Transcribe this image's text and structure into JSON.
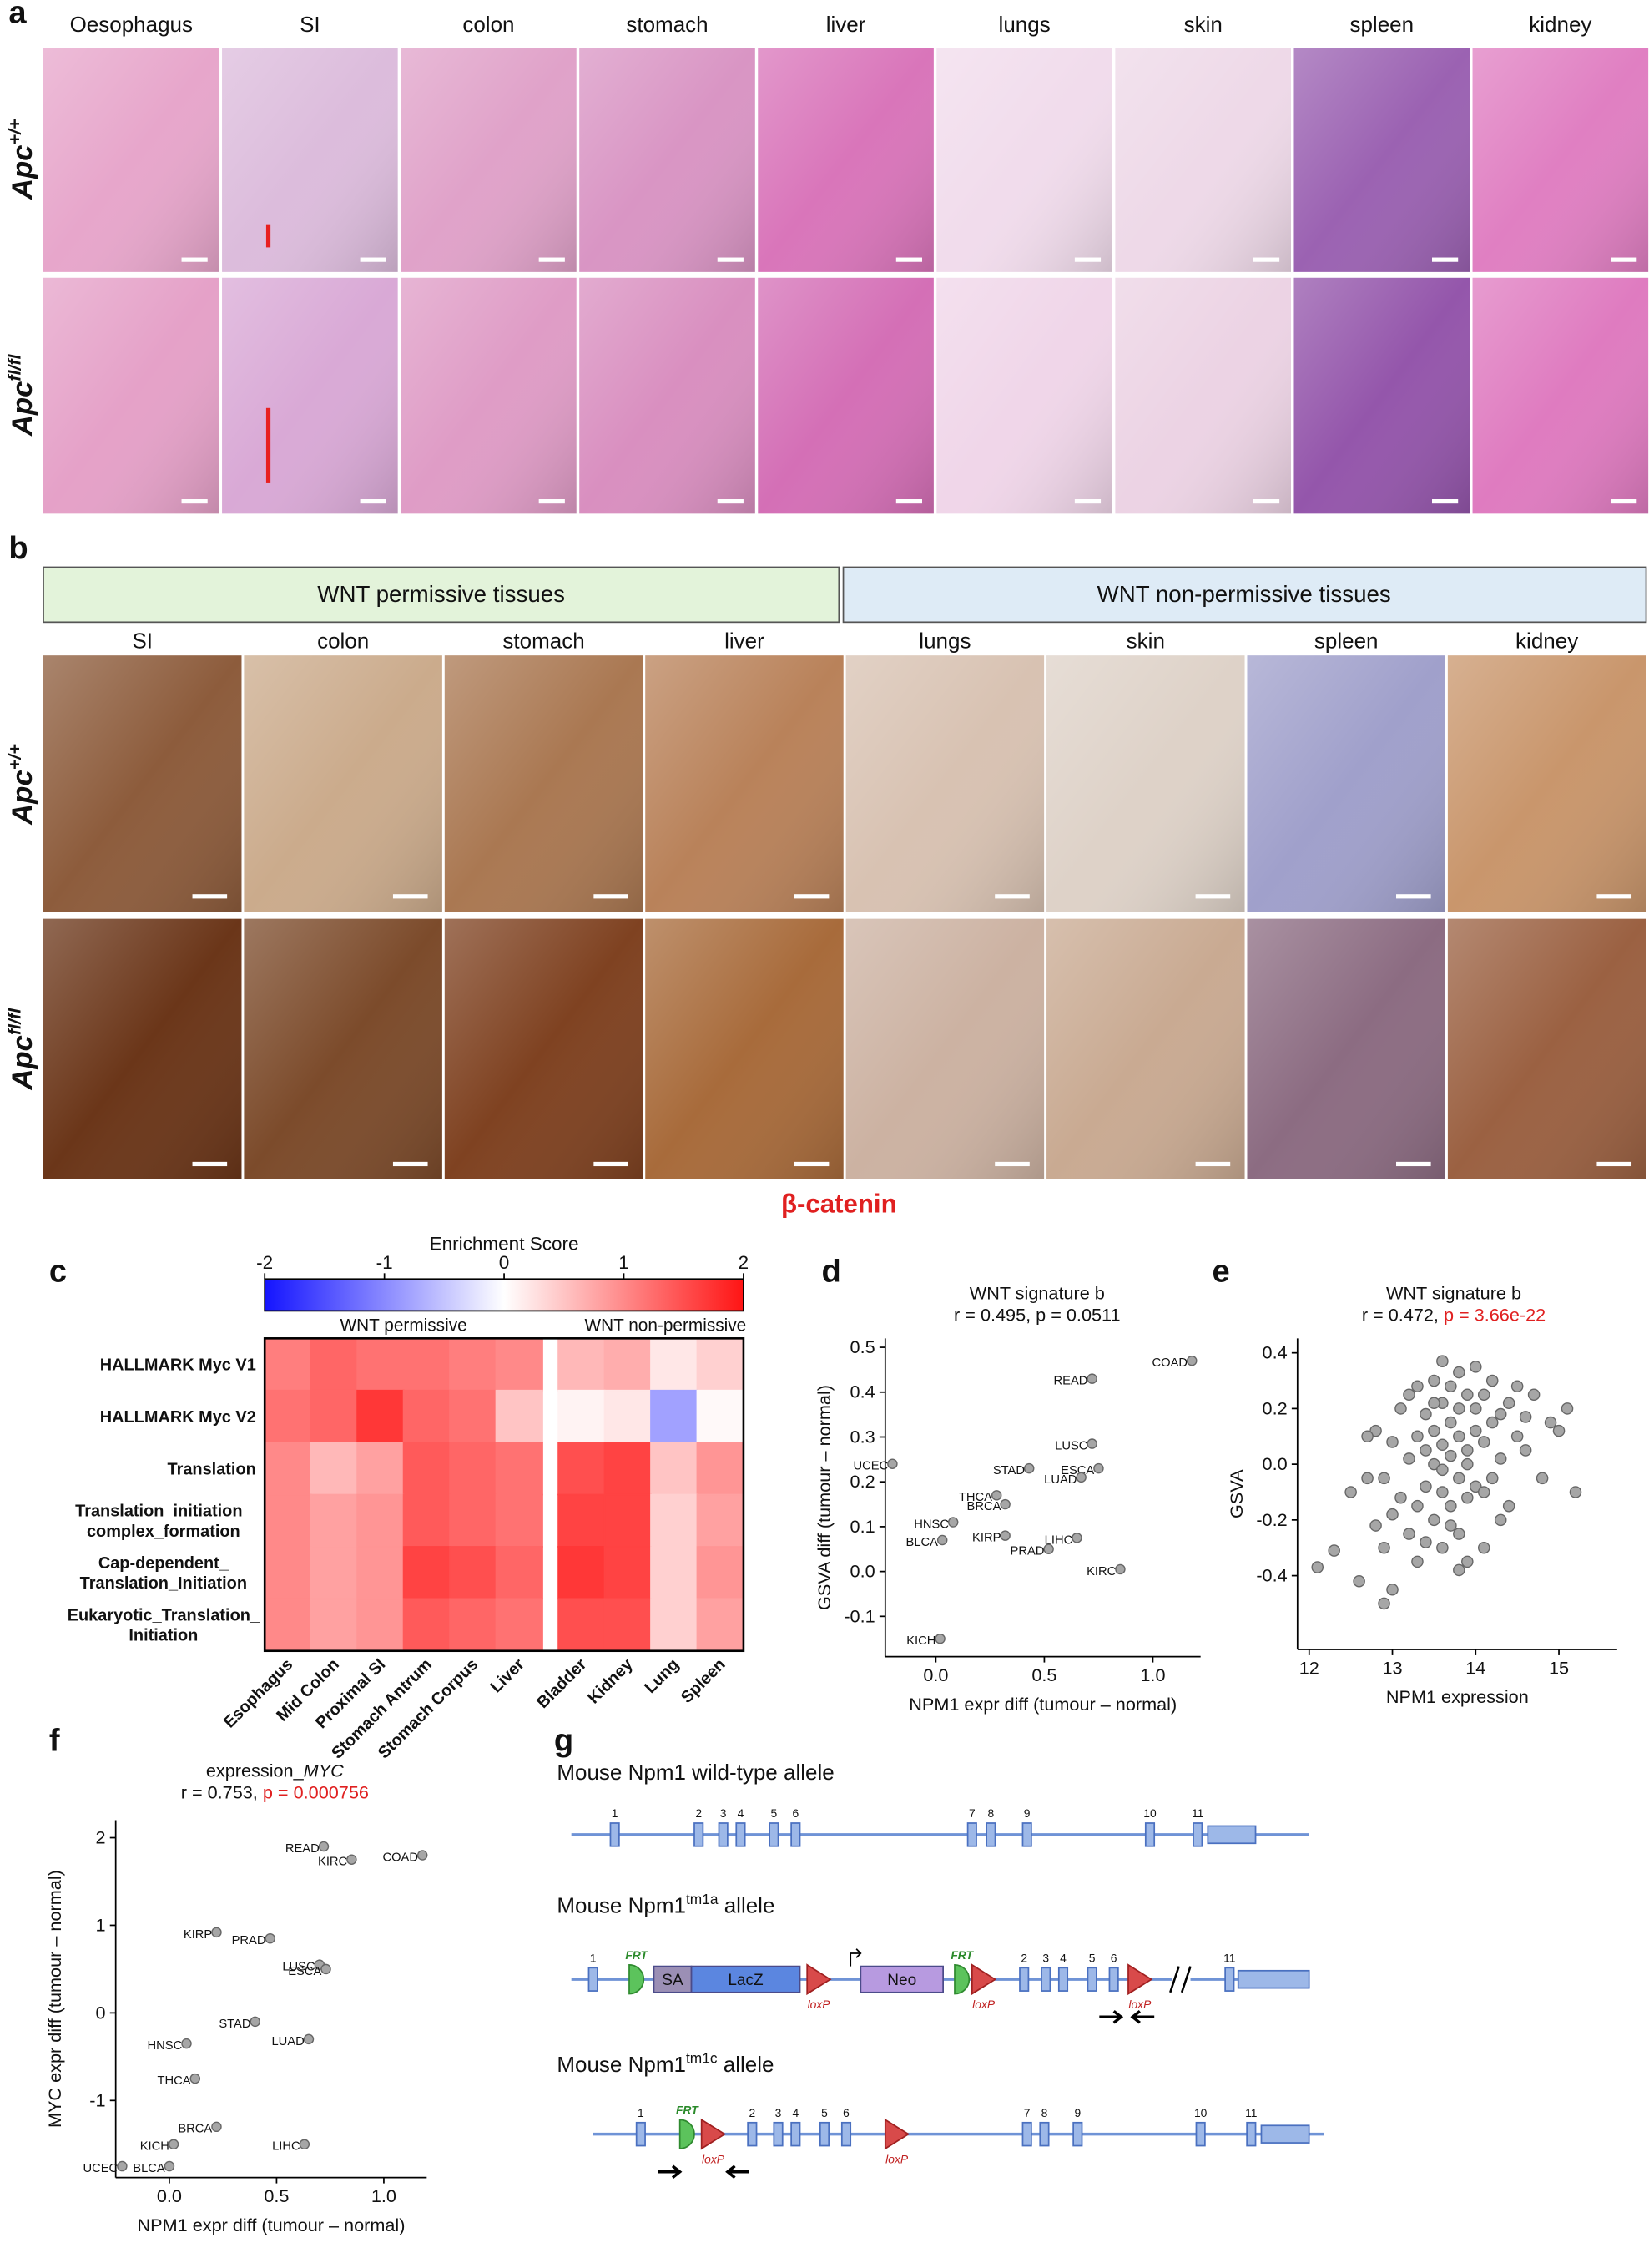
{
  "panels": [
    "a",
    "b",
    "c",
    "d",
    "e",
    "f",
    "g"
  ],
  "panel_a": {
    "columns": [
      "Oesophagus",
      "SI",
      "colon",
      "stomach",
      "liver",
      "lungs",
      "skin",
      "spleen",
      "kidney"
    ],
    "rows": [
      {
        "base": "Apc",
        "sup": "+/+"
      },
      {
        "base": "Apc",
        "sup": "fl/fl"
      }
    ]
  },
  "panel_b": {
    "groups": [
      "WNT permissive tissues",
      "WNT non-permissive tissues"
    ],
    "columns": [
      "SI",
      "colon",
      "stomach",
      "liver",
      "lungs",
      "skin",
      "spleen",
      "kidney"
    ],
    "rows": [
      {
        "base": "Apc",
        "sup": "+/+"
      },
      {
        "base": "Apc",
        "sup": "fl/fl"
      }
    ],
    "stain": "β-catenin"
  },
  "chart_data": [
    {
      "type": "heatmap",
      "colorbar_title": "Enrichment Score",
      "clim": [
        -2,
        2
      ],
      "cticks": [
        -2,
        -1,
        0,
        1,
        2
      ],
      "groups": [
        "WNT permissive",
        "WNT non-permissive"
      ],
      "categories": [
        "Esophagus",
        "Mid Colon",
        "Proximal SI",
        "Stomach Antrum",
        "Stomach Corpus",
        "Liver",
        "Bladder",
        "Kidney",
        "Lung",
        "Spleen"
      ],
      "row_labels": [
        [
          "HALLMARK Myc V1"
        ],
        [
          "HALLMARK Myc V2"
        ],
        [
          "Translation"
        ],
        [
          "Translation_initiation_",
          "complex_formation"
        ],
        [
          "Cap-dependent_",
          "Translation_Initiation"
        ],
        [
          "Eukaryotic_Translation_",
          "Initiation"
        ]
      ],
      "values": [
        [
          1.1,
          1.3,
          1.2,
          1.2,
          1.1,
          1.0,
          0.6,
          0.7,
          0.2,
          0.4
        ],
        [
          1.2,
          1.3,
          1.7,
          1.3,
          1.2,
          0.5,
          0.1,
          0.2,
          -0.8,
          0.05
        ],
        [
          1.0,
          0.6,
          0.8,
          1.4,
          1.3,
          1.2,
          1.5,
          1.6,
          0.5,
          0.9
        ],
        [
          1.0,
          0.8,
          0.9,
          1.4,
          1.3,
          1.2,
          1.6,
          1.6,
          0.4,
          0.8
        ],
        [
          1.0,
          0.8,
          0.9,
          1.6,
          1.5,
          1.3,
          1.7,
          1.6,
          0.4,
          0.9
        ],
        [
          1.0,
          0.8,
          0.9,
          1.4,
          1.3,
          1.2,
          1.5,
          1.5,
          0.4,
          0.8
        ]
      ]
    },
    {
      "type": "scatter",
      "title": "WNT signature b",
      "stats": "r = 0.495, p = 0.0511",
      "xlabel": "NPM1 expr diff (tumour – normal)",
      "ylabel": "GSVA diff (tumour – normal)",
      "xlim": [
        -0.233,
        1.22
      ],
      "ylim": [
        -0.19,
        0.52
      ],
      "xticks": [
        {
          "value": 0,
          "label": "0.0"
        },
        0.5,
        {
          "value": 1,
          "label": "1.0"
        }
      ],
      "yticks": [
        -0.1,
        {
          "value": 0,
          "label": "0.0"
        },
        0.1,
        0.2,
        0.3,
        0.4,
        0.5
      ],
      "point_labels": [
        "COAD",
        "READ",
        "LUSC",
        "STAD",
        "ESCA",
        "LUAD",
        "UCEC",
        "THCA",
        "BRCA",
        "HNSC",
        "KIRP",
        "BLCA",
        "LIHC",
        "PRAD",
        "KIRC",
        "KICH"
      ],
      "x": [
        1.18,
        0.72,
        0.72,
        0.43,
        0.75,
        0.67,
        -0.2,
        0.28,
        0.32,
        0.08,
        0.32,
        0.03,
        0.65,
        0.52,
        0.85,
        0.02
      ],
      "y": [
        0.47,
        0.43,
        0.285,
        0.23,
        0.23,
        0.21,
        0.24,
        0.17,
        0.15,
        0.11,
        0.08,
        0.07,
        0.075,
        0.05,
        0.005,
        -0.15
      ]
    },
    {
      "type": "scatter",
      "title": "WNT signature b",
      "stats": "r = 0.472,",
      "stats_highlight": "p = 3.66e-22",
      "xlabel": "NPM1 expression",
      "ylabel": "GSVA",
      "xlim": [
        11.86,
        15.7
      ],
      "ylim": [
        -0.665,
        0.452
      ],
      "xticks": [
        12,
        13,
        14,
        15
      ],
      "yticks": [
        -0.4,
        -0.2,
        {
          "value": 0,
          "label": "0.0"
        },
        0.2,
        0.4
      ],
      "x": [
        12.1,
        12.3,
        12.5,
        12.6,
        12.7,
        12.8,
        12.8,
        12.9,
        12.9,
        13.0,
        13.0,
        13.1,
        13.1,
        13.2,
        13.2,
        13.2,
        13.3,
        13.3,
        13.3,
        13.4,
        13.4,
        13.4,
        13.4,
        13.5,
        13.5,
        13.5,
        13.5,
        13.6,
        13.6,
        13.6,
        13.6,
        13.6,
        13.7,
        13.7,
        13.7,
        13.7,
        13.7,
        13.8,
        13.8,
        13.8,
        13.8,
        13.8,
        13.9,
        13.9,
        13.9,
        13.9,
        14.0,
        14.0,
        14.0,
        14.0,
        14.1,
        14.1,
        14.1,
        14.2,
        14.2,
        14.2,
        14.3,
        14.3,
        14.4,
        14.4,
        14.5,
        14.5,
        14.6,
        14.7,
        14.8,
        14.9,
        15.0,
        15.1,
        15.2,
        13.0,
        12.9,
        13.5,
        13.8,
        14.1,
        13.3,
        13.6,
        12.7,
        14.3,
        13.9,
        14.6
      ],
      "y": [
        -0.37,
        -0.31,
        -0.1,
        -0.42,
        -0.05,
        -0.22,
        0.12,
        -0.3,
        -0.05,
        -0.18,
        0.08,
        -0.12,
        0.2,
        -0.25,
        0.02,
        0.25,
        -0.15,
        0.1,
        -0.35,
        -0.08,
        0.05,
        0.18,
        -0.28,
        -0.2,
        0.0,
        0.12,
        0.3,
        -0.1,
        0.07,
        0.22,
        -0.3,
        -0.02,
        -0.15,
        0.03,
        0.15,
        0.28,
        -0.22,
        -0.05,
        0.1,
        0.2,
        0.33,
        -0.38,
        -0.12,
        0.05,
        0.25,
        0.0,
        -0.08,
        0.12,
        0.2,
        0.35,
        -0.1,
        0.08,
        0.25,
        -0.05,
        0.15,
        0.3,
        0.02,
        0.18,
        -0.15,
        0.22,
        0.1,
        0.28,
        0.05,
        0.25,
        -0.05,
        0.15,
        0.12,
        0.2,
        -0.1,
        -0.45,
        -0.5,
        0.22,
        -0.25,
        -0.3,
        0.28,
        0.37,
        0.1,
        -0.2,
        -0.35,
        0.17
      ]
    },
    {
      "type": "scatter",
      "title": "expression_",
      "title_italic": "MYC",
      "stats": "r = 0.753,",
      "stats_highlight": "p = 0.000756",
      "xlabel": "NPM1 expr diff (tumour – normal)",
      "ylabel": "MYC expr diff (tumour – normal)",
      "xlim": [
        -0.25,
        1.2
      ],
      "ylim": [
        -1.88,
        2.2
      ],
      "xticks": [
        {
          "value": 0,
          "label": "0.0"
        },
        0.5,
        {
          "value": 1,
          "label": "1.0"
        }
      ],
      "yticks": [
        -1,
        0,
        1,
        2
      ],
      "point_labels": [
        "READ",
        "KIRC",
        "COAD",
        "KIRP",
        "PRAD",
        "LUSC",
        "ESCA",
        "STAD",
        "LUAD",
        "HNSC",
        "THCA",
        "BRCA",
        "KICH",
        "LIHC",
        "UCEC",
        "BLCA"
      ],
      "x": [
        0.72,
        0.85,
        1.18,
        0.22,
        0.47,
        0.7,
        0.73,
        0.4,
        0.65,
        0.08,
        0.12,
        0.22,
        0.02,
        0.63,
        -0.22,
        0.0
      ],
      "y": [
        1.9,
        1.75,
        1.8,
        0.92,
        0.85,
        0.55,
        0.5,
        -0.1,
        -0.3,
        -0.35,
        -0.75,
        -1.3,
        -1.5,
        -1.5,
        -1.75,
        -1.75
      ]
    }
  ],
  "panel_g": {
    "alleles": [
      {
        "title": {
          "text": "Mouse Npm1 wild-type allele"
        },
        "exons": [
          "1",
          "2",
          "3",
          "4",
          "5",
          "6",
          "7",
          "8",
          "9",
          "10",
          "11"
        ],
        "labels": []
      },
      {
        "title": {
          "text": "Mouse Npm1",
          "sup": "tm1a",
          "after": " allele"
        },
        "exons": [
          "1",
          "2",
          "3",
          "4",
          "5",
          "6",
          "11"
        ],
        "labels": [
          "FRT",
          "SA",
          "LacZ",
          "loxP",
          "Neo",
          "FRT",
          "loxP",
          "loxP"
        ]
      },
      {
        "title": {
          "text": "Mouse Npm1",
          "sup": "tm1c",
          "after": " allele"
        },
        "exons": [
          "1",
          "2",
          "3",
          "4",
          "5",
          "6",
          "7",
          "8",
          "9",
          "10",
          "11"
        ],
        "labels": [
          "FRT",
          "loxP",
          "loxP"
        ]
      }
    ]
  }
}
